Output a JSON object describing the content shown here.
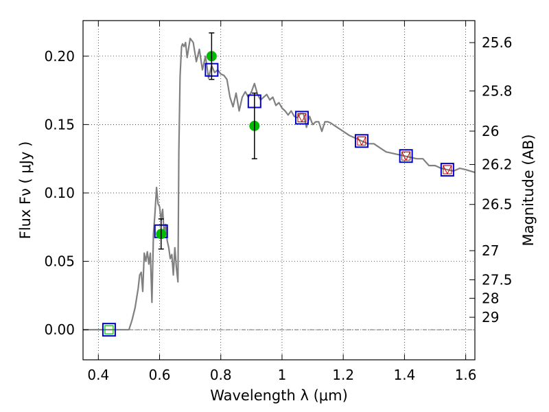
{
  "chart_data": {
    "type": "scatter",
    "xlabel": "Wavelength  λ (μm)",
    "ylabel": "Flux  Fν  ( μJy )",
    "y2label": "Magnitude (AB)",
    "xlim": [
      0.35,
      1.63
    ],
    "ylim": [
      -0.022,
      0.226
    ],
    "grid": true,
    "grid_style": "dotted",
    "xticks": [
      0.4,
      0.6,
      0.8,
      1.0,
      1.2,
      1.4,
      1.6
    ],
    "xtick_labels": [
      "0.4",
      "0.6",
      "0.8",
      "1",
      "1.2",
      "1.4",
      "1.6"
    ],
    "yticks": [
      0.0,
      0.05,
      0.1,
      0.15,
      0.2
    ],
    "ytick_labels": [
      "0.00",
      "0.05",
      "0.10",
      "0.15",
      "0.20"
    ],
    "y2ticks": [
      {
        "label": "25.6",
        "flux": 0.2099
      },
      {
        "label": "25.8",
        "flux": 0.1746
      },
      {
        "label": "26",
        "flux": 0.1452
      },
      {
        "label": "26.2",
        "flux": 0.1208
      },
      {
        "label": "26.5",
        "flux": 0.0916
      },
      {
        "label": "27",
        "flux": 0.0578
      },
      {
        "label": "27.5",
        "flux": 0.0365
      },
      {
        "label": "28",
        "flux": 0.023
      },
      {
        "label": "29",
        "flux": 0.0091
      }
    ],
    "zero_line": true,
    "colors": {
      "model": "#808080",
      "model_squares": "#0000cc",
      "triangles": "#cc0000",
      "detections": "#00bb00",
      "errorbar": "#000000"
    },
    "series": [
      {
        "kind": "line",
        "x": [
          0.35,
          0.4,
          0.45,
          0.48,
          0.5,
          0.51,
          0.52,
          0.53,
          0.535,
          0.54,
          0.545,
          0.55,
          0.555,
          0.56,
          0.565,
          0.57,
          0.575,
          0.58,
          0.585,
          0.59,
          0.595,
          0.6,
          0.605,
          0.61,
          0.615,
          0.62,
          0.625,
          0.63,
          0.635,
          0.64,
          0.645,
          0.65,
          0.655,
          0.66,
          0.663,
          0.667,
          0.67,
          0.672,
          0.675,
          0.68,
          0.685,
          0.69,
          0.7,
          0.71,
          0.72,
          0.73,
          0.74,
          0.75,
          0.76,
          0.77,
          0.78,
          0.79,
          0.8,
          0.81,
          0.82,
          0.83,
          0.84,
          0.85,
          0.86,
          0.87,
          0.88,
          0.89,
          0.9,
          0.91,
          0.92,
          0.93,
          0.94,
          0.95,
          0.96,
          0.97,
          0.98,
          0.99,
          1.0,
          1.01,
          1.02,
          1.03,
          1.04,
          1.05,
          1.06,
          1.07,
          1.08,
          1.09,
          1.1,
          1.11,
          1.12,
          1.13,
          1.14,
          1.15,
          1.16,
          1.18,
          1.2,
          1.22,
          1.24,
          1.26,
          1.28,
          1.3,
          1.32,
          1.34,
          1.36,
          1.38,
          1.4,
          1.42,
          1.44,
          1.46,
          1.48,
          1.5,
          1.52,
          1.54,
          1.56,
          1.58,
          1.6,
          1.63
        ],
        "y": [
          0.0,
          0.0,
          0.0,
          0.0,
          0.0,
          0.007,
          0.016,
          0.03,
          0.04,
          0.042,
          0.028,
          0.056,
          0.05,
          0.057,
          0.048,
          0.056,
          0.02,
          0.07,
          0.085,
          0.104,
          0.092,
          0.09,
          0.08,
          0.088,
          0.07,
          0.077,
          0.065,
          0.06,
          0.052,
          0.055,
          0.04,
          0.06,
          0.045,
          0.035,
          0.13,
          0.185,
          0.2,
          0.207,
          0.209,
          0.207,
          0.21,
          0.199,
          0.213,
          0.21,
          0.196,
          0.205,
          0.19,
          0.2,
          0.184,
          0.193,
          0.188,
          0.19,
          0.187,
          0.186,
          0.183,
          0.17,
          0.163,
          0.173,
          0.16,
          0.17,
          0.174,
          0.17,
          0.174,
          0.18,
          0.172,
          0.168,
          0.17,
          0.172,
          0.168,
          0.17,
          0.164,
          0.166,
          0.162,
          0.16,
          0.157,
          0.16,
          0.156,
          0.155,
          0.158,
          0.158,
          0.148,
          0.156,
          0.15,
          0.152,
          0.152,
          0.145,
          0.152,
          0.152,
          0.151,
          0.148,
          0.145,
          0.142,
          0.14,
          0.138,
          0.136,
          0.136,
          0.133,
          0.13,
          0.129,
          0.128,
          0.127,
          0.126,
          0.125,
          0.125,
          0.12,
          0.12,
          0.118,
          0.117,
          0.116,
          0.118,
          0.117,
          0.115
        ]
      },
      {
        "kind": "open-square",
        "x": [
          0.435,
          0.605,
          0.77,
          0.91,
          1.065,
          1.26,
          1.405,
          1.54
        ],
        "y": [
          0.0,
          0.072,
          0.19,
          0.167,
          0.155,
          0.138,
          0.127,
          0.117
        ]
      },
      {
        "kind": "triangle-square",
        "x": [
          1.065,
          1.26,
          1.405,
          1.54
        ],
        "y": [
          0.155,
          0.138,
          0.127,
          0.117
        ]
      },
      {
        "kind": "green-square",
        "x": [
          0.435
        ],
        "y": [
          0.0
        ]
      },
      {
        "kind": "detection",
        "x": [
          0.605,
          0.77,
          0.91
        ],
        "y": [
          0.07,
          0.2,
          0.149
        ],
        "err": [
          0.011,
          0.017,
          0.024
        ]
      }
    ]
  }
}
